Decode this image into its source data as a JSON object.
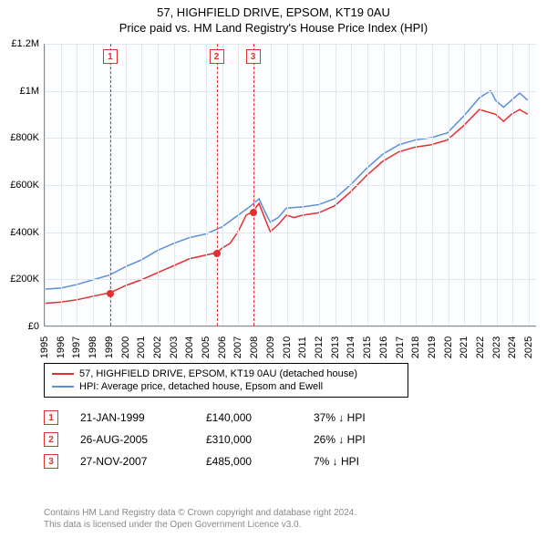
{
  "title": "57, HIGHFIELD DRIVE, EPSOM, KT19 0AU",
  "subtitle": "Price paid vs. HM Land Registry's House Price Index (HPI)",
  "chart": {
    "type": "line",
    "background_color": "#fbfdfe",
    "grid_color": "#e0e7ee",
    "axis_color": "#888888",
    "x": {
      "min": 1995,
      "max": 2025.5,
      "ticks": [
        1995,
        1996,
        1997,
        1998,
        1999,
        2000,
        2001,
        2002,
        2003,
        2004,
        2005,
        2006,
        2007,
        2008,
        2009,
        2010,
        2011,
        2012,
        2013,
        2014,
        2015,
        2016,
        2017,
        2018,
        2019,
        2020,
        2021,
        2022,
        2023,
        2024,
        2025
      ]
    },
    "y": {
      "min": 0,
      "max": 1200000,
      "ticks": [
        0,
        200000,
        400000,
        600000,
        800000,
        1000000,
        1200000
      ],
      "tick_labels": [
        "£0",
        "£200K",
        "£400K",
        "£600K",
        "£800K",
        "£1M",
        "£1.2M"
      ]
    },
    "series": [
      {
        "name": "price_paid",
        "label": "57, HIGHFIELD DRIVE, EPSOM, KT19 0AU (detached house)",
        "color": "#e03030",
        "line_width": 1.5,
        "data": [
          [
            1995.0,
            95000
          ],
          [
            1996.0,
            100000
          ],
          [
            1997.0,
            110000
          ],
          [
            1998.0,
            125000
          ],
          [
            1999.06,
            140000
          ],
          [
            2000.0,
            170000
          ],
          [
            2001.0,
            195000
          ],
          [
            2002.0,
            225000
          ],
          [
            2003.0,
            255000
          ],
          [
            2004.0,
            285000
          ],
          [
            2005.0,
            300000
          ],
          [
            2005.65,
            310000
          ],
          [
            2006.0,
            330000
          ],
          [
            2006.5,
            350000
          ],
          [
            2007.0,
            400000
          ],
          [
            2007.5,
            470000
          ],
          [
            2007.9,
            485000
          ],
          [
            2008.3,
            520000
          ],
          [
            2008.7,
            450000
          ],
          [
            2009.0,
            400000
          ],
          [
            2009.5,
            430000
          ],
          [
            2010.0,
            470000
          ],
          [
            2010.5,
            460000
          ],
          [
            2011.0,
            470000
          ],
          [
            2012.0,
            480000
          ],
          [
            2013.0,
            510000
          ],
          [
            2014.0,
            570000
          ],
          [
            2015.0,
            640000
          ],
          [
            2016.0,
            700000
          ],
          [
            2017.0,
            740000
          ],
          [
            2018.0,
            760000
          ],
          [
            2019.0,
            770000
          ],
          [
            2020.0,
            790000
          ],
          [
            2021.0,
            850000
          ],
          [
            2022.0,
            920000
          ],
          [
            2023.0,
            900000
          ],
          [
            2023.5,
            870000
          ],
          [
            2024.0,
            900000
          ],
          [
            2024.5,
            920000
          ],
          [
            2025.0,
            900000
          ]
        ]
      },
      {
        "name": "hpi",
        "label": "HPI: Average price, detached house, Epsom and Ewell",
        "color": "#5b8fd6",
        "line_width": 1.5,
        "data": [
          [
            1995.0,
            155000
          ],
          [
            1996.0,
            160000
          ],
          [
            1997.0,
            175000
          ],
          [
            1998.0,
            195000
          ],
          [
            1999.0,
            215000
          ],
          [
            2000.0,
            250000
          ],
          [
            2001.0,
            280000
          ],
          [
            2002.0,
            320000
          ],
          [
            2003.0,
            350000
          ],
          [
            2004.0,
            375000
          ],
          [
            2005.0,
            390000
          ],
          [
            2006.0,
            420000
          ],
          [
            2007.0,
            470000
          ],
          [
            2007.8,
            510000
          ],
          [
            2008.3,
            540000
          ],
          [
            2008.7,
            480000
          ],
          [
            2009.0,
            440000
          ],
          [
            2009.5,
            460000
          ],
          [
            2010.0,
            500000
          ],
          [
            2011.0,
            505000
          ],
          [
            2012.0,
            515000
          ],
          [
            2013.0,
            540000
          ],
          [
            2014.0,
            600000
          ],
          [
            2015.0,
            670000
          ],
          [
            2016.0,
            730000
          ],
          [
            2017.0,
            770000
          ],
          [
            2018.0,
            790000
          ],
          [
            2019.0,
            800000
          ],
          [
            2020.0,
            820000
          ],
          [
            2021.0,
            890000
          ],
          [
            2022.0,
            970000
          ],
          [
            2022.7,
            1000000
          ],
          [
            2023.0,
            960000
          ],
          [
            2023.5,
            930000
          ],
          [
            2024.0,
            960000
          ],
          [
            2024.5,
            990000
          ],
          [
            2025.0,
            960000
          ]
        ]
      }
    ],
    "markers": [
      {
        "x": 1999.06,
        "y": 140000,
        "color": "#e03030"
      },
      {
        "x": 2005.65,
        "y": 310000,
        "color": "#e03030"
      },
      {
        "x": 2007.91,
        "y": 485000,
        "color": "#e03030"
      }
    ],
    "reflines": [
      {
        "x": 1999.06,
        "label": "1",
        "color": "#e03030"
      },
      {
        "x": 2005.65,
        "label": "2",
        "color": "#e03030"
      },
      {
        "x": 2007.91,
        "label": "3",
        "color": "#e03030"
      }
    ]
  },
  "legend": {
    "items": [
      {
        "color": "#e03030",
        "label": "57, HIGHFIELD DRIVE, EPSOM, KT19 0AU (detached house)"
      },
      {
        "color": "#5b8fd6",
        "label": "HPI: Average price, detached house, Epsom and Ewell"
      }
    ]
  },
  "events": [
    {
      "n": "1",
      "date": "21-JAN-1999",
      "price": "£140,000",
      "delta": "37% ↓ HPI"
    },
    {
      "n": "2",
      "date": "26-AUG-2005",
      "price": "£310,000",
      "delta": "26% ↓ HPI"
    },
    {
      "n": "3",
      "date": "27-NOV-2007",
      "price": "£485,000",
      "delta": "7% ↓ HPI"
    }
  ],
  "footnote": {
    "line1": "Contains HM Land Registry data © Crown copyright and database right 2024.",
    "line2": "This data is licensed under the Open Government Licence v3.0."
  }
}
